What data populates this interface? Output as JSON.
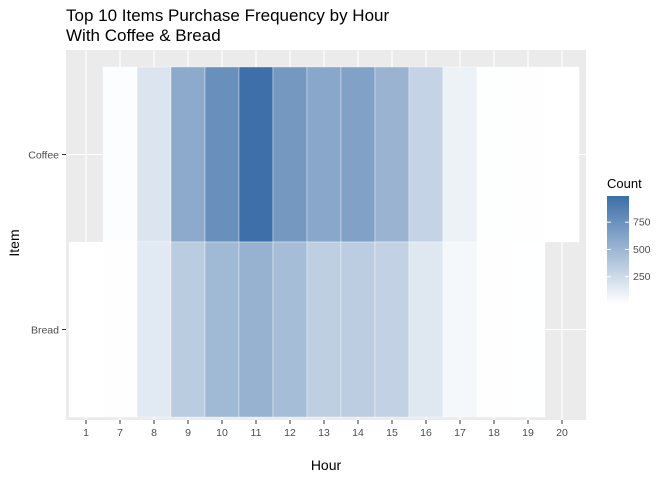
{
  "chart_data": {
    "type": "heatmap",
    "title": [
      "Top 10 Items Purchase Frequency by Hour",
      "With Coffee & Bread"
    ],
    "xlabel": "Hour",
    "ylabel": "Item",
    "x": [
      "1",
      "7",
      "8",
      "9",
      "10",
      "11",
      "12",
      "13",
      "14",
      "15",
      "16",
      "17",
      "18",
      "19",
      "20"
    ],
    "y": [
      "Coffee",
      "Bread"
    ],
    "series": [
      {
        "name": "Coffee",
        "values": [
          null,
          15,
          180,
          580,
          760,
          980,
          700,
          600,
          640,
          520,
          300,
          90,
          8,
          5,
          1
        ]
      },
      {
        "name": "Bread",
        "values": [
          1,
          5,
          150,
          350,
          480,
          530,
          450,
          330,
          340,
          310,
          160,
          50,
          4,
          3,
          null
        ]
      }
    ],
    "legend": {
      "title": "Count",
      "ticks": [
        250,
        500,
        750
      ],
      "range": [
        0,
        990
      ],
      "low_color": "#ffffff",
      "high_color": "#3c6ea8",
      "placement": "right"
    },
    "background": "#ebebeb",
    "grid": true
  }
}
